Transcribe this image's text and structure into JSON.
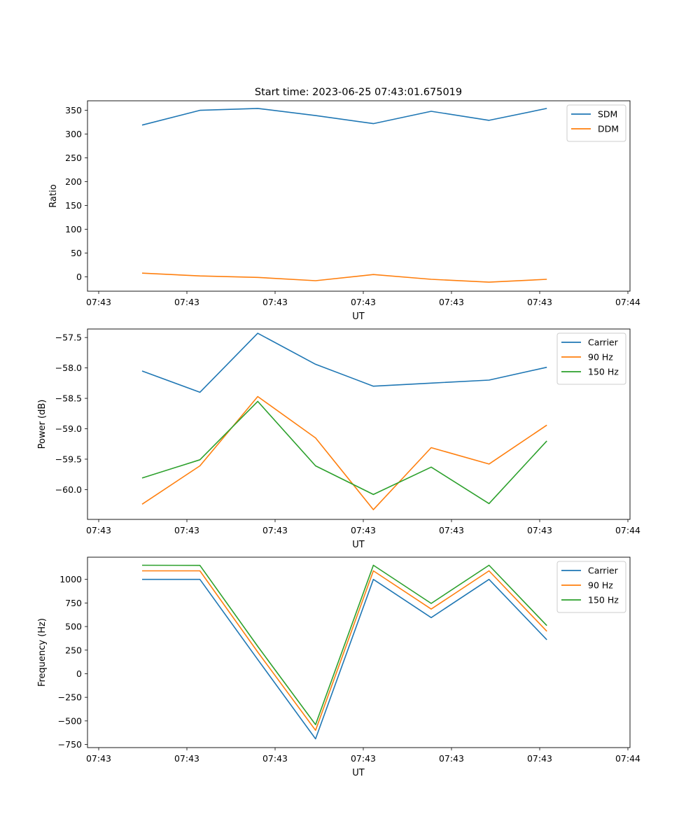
{
  "figure": {
    "title": "Start time: 2023-06-25 07:43:01.675019"
  },
  "chart_data": [
    {
      "type": "line",
      "xlabel": "UT",
      "ylabel": "Ratio",
      "x_ticks": [
        "07:43",
        "07:43",
        "07:43",
        "07:43",
        "07:43",
        "07:43",
        "07:44"
      ],
      "y_ticks": [
        "0",
        "50",
        "100",
        "150",
        "200",
        "250",
        "300",
        "350"
      ],
      "xlim": [
        -0.2,
        8.8
      ],
      "ylim": [
        -30,
        370
      ],
      "legend_position": "top-right",
      "x": [
        0.5,
        1.5,
        2.5,
        3.5,
        4.5,
        5.5,
        6.5,
        7.5
      ],
      "series": [
        {
          "name": "SDM",
          "color": "#1f77b4",
          "values": [
            319,
            350,
            354,
            339,
            322,
            348,
            329,
            354
          ]
        },
        {
          "name": "DDM",
          "color": "#ff7f0e",
          "values": [
            8,
            2,
            -1,
            -8,
            5,
            -5,
            -11,
            -5
          ]
        }
      ]
    },
    {
      "type": "line",
      "xlabel": "UT",
      "ylabel": "Power (dB)",
      "x_ticks": [
        "07:43",
        "07:43",
        "07:43",
        "07:43",
        "07:43",
        "07:43",
        "07:44"
      ],
      "y_ticks": [
        "−60.0",
        "−59.5",
        "−59.0",
        "−58.5",
        "−58.0",
        "−57.5"
      ],
      "xlim": [
        -0.2,
        8.8
      ],
      "ylim": [
        -60.49,
        -57.36
      ],
      "legend_position": "top-right",
      "x": [
        0.5,
        1.5,
        2.5,
        3.5,
        4.5,
        5.5,
        6.5,
        7.5
      ],
      "series": [
        {
          "name": "Carrier",
          "color": "#1f77b4",
          "values": [
            -58.05,
            -58.4,
            -57.43,
            -57.94,
            -58.3,
            -58.25,
            -58.2,
            -57.99
          ]
        },
        {
          "name": "90 Hz",
          "color": "#ff7f0e",
          "values": [
            -60.24,
            -59.61,
            -58.47,
            -59.15,
            -60.33,
            -59.31,
            -59.58,
            -58.94
          ]
        },
        {
          "name": "150 Hz",
          "color": "#2ca02c",
          "values": [
            -59.81,
            -59.51,
            -58.55,
            -59.61,
            -60.08,
            -59.63,
            -60.23,
            -59.2
          ]
        }
      ]
    },
    {
      "type": "line",
      "xlabel": "UT",
      "ylabel": "Frequency (Hz)",
      "x_ticks": [
        "07:43",
        "07:43",
        "07:43",
        "07:43",
        "07:43",
        "07:43",
        "07:44"
      ],
      "y_ticks": [
        "−750",
        "−500",
        "−250",
        "0",
        "250",
        "500",
        "750",
        "1000"
      ],
      "xlim": [
        -0.2,
        8.8
      ],
      "ylim": [
        -783,
        1235
      ],
      "legend_position": "top-right",
      "x": [
        0.5,
        1.5,
        2.5,
        3.5,
        4.5,
        5.5,
        6.5,
        7.5
      ],
      "series": [
        {
          "name": "Carrier",
          "color": "#1f77b4",
          "values": [
            1000,
            1000,
            150,
            -690,
            1000,
            595,
            1000,
            360
          ]
        },
        {
          "name": "90 Hz",
          "color": "#ff7f0e",
          "values": [
            1090,
            1090,
            230,
            -600,
            1090,
            685,
            1090,
            450
          ]
        },
        {
          "name": "150 Hz",
          "color": "#2ca02c",
          "values": [
            1150,
            1148,
            290,
            -540,
            1150,
            745,
            1150,
            510
          ]
        }
      ]
    }
  ]
}
